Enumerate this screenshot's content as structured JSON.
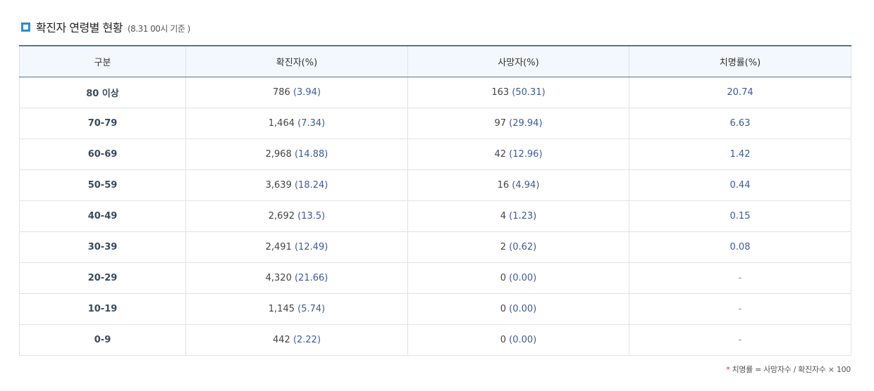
{
  "title": "확진자 연령별 현황",
  "subtitle": "(8.31 00시 기준 )",
  "colors": {
    "accent": "#2d8fc4",
    "header_border": "#56749a",
    "value_blue": "#3d5a9a"
  },
  "table": {
    "headers": [
      "구분",
      "확진자(%)",
      "사망자(%)",
      "치명률(%)"
    ],
    "rows": [
      {
        "group": "80 이상",
        "confirmed": "786",
        "confirmed_pct": "(3.94)",
        "deaths": "163",
        "deaths_pct": "(50.31)",
        "fatality": "20.74"
      },
      {
        "group": "70-79",
        "confirmed": "1,464",
        "confirmed_pct": "(7.34)",
        "deaths": "97",
        "deaths_pct": "(29.94)",
        "fatality": "6.63"
      },
      {
        "group": "60-69",
        "confirmed": "2,968",
        "confirmed_pct": "(14.88)",
        "deaths": "42",
        "deaths_pct": "(12.96)",
        "fatality": "1.42"
      },
      {
        "group": "50-59",
        "confirmed": "3,639",
        "confirmed_pct": "(18.24)",
        "deaths": "16",
        "deaths_pct": "(4.94)",
        "fatality": "0.44"
      },
      {
        "group": "40-49",
        "confirmed": "2,692",
        "confirmed_pct": "(13.5)",
        "deaths": "4",
        "deaths_pct": "(1.23)",
        "fatality": "0.15"
      },
      {
        "group": "30-39",
        "confirmed": "2,491",
        "confirmed_pct": "(12.49)",
        "deaths": "2",
        "deaths_pct": "(0.62)",
        "fatality": "0.08"
      },
      {
        "group": "20-29",
        "confirmed": "4,320",
        "confirmed_pct": "(21.66)",
        "deaths": "0",
        "deaths_pct": "(0.00)",
        "fatality": "-"
      },
      {
        "group": "10-19",
        "confirmed": "1,145",
        "confirmed_pct": "(5.74)",
        "deaths": "0",
        "deaths_pct": "(0.00)",
        "fatality": "-"
      },
      {
        "group": "0-9",
        "confirmed": "442",
        "confirmed_pct": "(2.22)",
        "deaths": "0",
        "deaths_pct": "(0.00)",
        "fatality": "-"
      }
    ]
  },
  "footnote": {
    "mark": "*",
    "text": "치명률 = 사망자수 / 확진자수 × 100"
  }
}
